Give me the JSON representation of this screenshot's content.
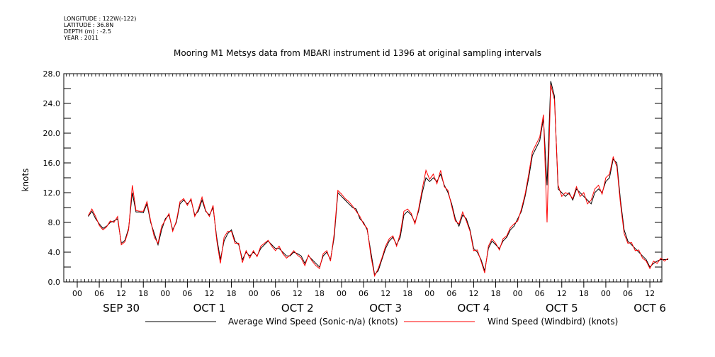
{
  "header": {
    "meta": [
      "LONGITUDE : 122W(-122)",
      "LATITUDE : 36.8N",
      "DEPTH (m) : -2.5",
      "YEAR : 2011"
    ],
    "title": "Mooring M1 Metsys data from MBARI instrument id 1396 at original sampling intervals"
  },
  "chart_data": {
    "type": "line",
    "title": "Mooring M1 Metsys data from MBARI instrument id 1396 at original sampling intervals",
    "xlabel": "",
    "ylabel": "knots",
    "x_range_hours": [
      0,
      162
    ],
    "ylim": [
      0,
      28
    ],
    "yticks": [
      "0.0",
      "4.0",
      "8.0",
      "12.0",
      "16.0",
      "20.0",
      "24.0",
      "28.0"
    ],
    "hour_ticks": [
      "00",
      "06",
      "12",
      "18",
      "00",
      "06",
      "12",
      "18",
      "00",
      "06",
      "12",
      "18",
      "00",
      "06",
      "12",
      "18",
      "00",
      "06",
      "12",
      "18",
      "00",
      "06",
      "12",
      "18",
      "00",
      "06",
      "12"
    ],
    "day_labels": [
      "SEP 30",
      "OCT  1",
      "OCT  2",
      "OCT  3",
      "OCT  4",
      "OCT  5",
      "OCT  6"
    ],
    "series": [
      {
        "name": "Average Wind Speed (Sonic-n/a) (knots)",
        "color": "#000000",
        "x_start_hour": 3,
        "x_step_hours": 1,
        "values": [
          8.8,
          9.5,
          8.5,
          7.8,
          7.2,
          7.5,
          8.0,
          8.2,
          8.5,
          5.2,
          5.6,
          7.2,
          12.0,
          9.4,
          9.4,
          9.3,
          10.5,
          8.0,
          6.5,
          5.0,
          7.0,
          8.5,
          9.0,
          7.0,
          8.0,
          10.5,
          11.0,
          10.5,
          11.0,
          9.0,
          9.5,
          11.0,
          9.5,
          9.0,
          10.0,
          6.0,
          3.0,
          5.5,
          6.5,
          7.0,
          5.5,
          5.0,
          3.0,
          4.0,
          3.5,
          4.0,
          3.5,
          4.5,
          5.0,
          5.5,
          5.0,
          4.5,
          4.5,
          4.0,
          3.5,
          3.5,
          4.0,
          3.8,
          3.5,
          2.5,
          3.5,
          3.0,
          2.5,
          2.0,
          3.5,
          4.0,
          3.0,
          6.0,
          12.0,
          11.5,
          11.0,
          10.5,
          10.0,
          9.8,
          8.5,
          8.0,
          7.0,
          4.0,
          1.0,
          1.5,
          3.0,
          4.5,
          5.5,
          6.0,
          5.0,
          6.0,
          9.0,
          9.5,
          9.0,
          8.0,
          9.5,
          12.0,
          14.0,
          13.5,
          14.0,
          13.5,
          14.5,
          13.0,
          12.0,
          10.5,
          8.5,
          7.5,
          9.0,
          8.5,
          7.0,
          4.5,
          4.0,
          3.0,
          1.5,
          4.5,
          5.5,
          5.0,
          4.5,
          5.5,
          6.0,
          7.0,
          7.5,
          8.5,
          9.5,
          11.5,
          14.0,
          17.0,
          18.0,
          19.0,
          22.0,
          13.0,
          27.0,
          25.0,
          12.5,
          12.0,
          11.5,
          12.0,
          11.0,
          12.5,
          12.0,
          11.5,
          11.0,
          10.5,
          12.0,
          12.5,
          12.0,
          13.5,
          14.0,
          16.5,
          16.0,
          11.0,
          7.0,
          5.5,
          5.0,
          4.5,
          4.0,
          3.5,
          3.0,
          2.0,
          2.5,
          2.8,
          3.0,
          3.0,
          3.0
        ]
      },
      {
        "name": "Wind Speed (Windbird) (knots)",
        "color": "#ff0000",
        "x_start_hour": 3,
        "x_step_hours": 1,
        "values": [
          8.9,
          9.8,
          8.8,
          7.6,
          7.0,
          7.4,
          8.2,
          8.0,
          8.8,
          5.0,
          5.4,
          7.0,
          13.0,
          9.6,
          9.5,
          9.5,
          10.8,
          8.2,
          6.0,
          5.2,
          7.5,
          8.3,
          9.2,
          6.8,
          8.2,
          10.8,
          11.2,
          10.3,
          11.2,
          8.8,
          9.8,
          11.4,
          9.6,
          8.8,
          10.3,
          5.6,
          2.5,
          6.0,
          6.8,
          6.8,
          5.2,
          5.2,
          2.6,
          4.2,
          3.2,
          4.2,
          3.4,
          4.8,
          5.2,
          5.6,
          4.8,
          4.2,
          4.8,
          3.8,
          3.2,
          3.6,
          4.2,
          3.6,
          3.2,
          2.2,
          3.6,
          2.8,
          2.2,
          1.8,
          3.8,
          4.2,
          2.8,
          6.5,
          12.3,
          11.8,
          11.2,
          10.8,
          10.2,
          9.5,
          8.8,
          7.8,
          7.2,
          3.5,
          0.8,
          1.8,
          3.2,
          4.8,
          5.8,
          6.2,
          4.8,
          6.5,
          9.5,
          9.8,
          9.2,
          7.8,
          9.8,
          12.5,
          15.0,
          13.8,
          14.5,
          13.2,
          15.0,
          12.8,
          12.3,
          10.2,
          8.2,
          7.8,
          9.4,
          8.2,
          6.8,
          4.2,
          4.3,
          2.8,
          1.2,
          4.8,
          5.8,
          5.2,
          4.3,
          5.8,
          6.2,
          7.3,
          7.8,
          8.2,
          9.8,
          11.8,
          14.5,
          17.5,
          18.5,
          19.5,
          22.5,
          8.0,
          26.5,
          24.5,
          13.0,
          11.5,
          12.0,
          11.8,
          11.2,
          12.8,
          11.5,
          12.0,
          10.5,
          11.0,
          12.5,
          13.0,
          11.8,
          14.0,
          14.5,
          16.8,
          15.5,
          10.5,
          6.5,
          5.2,
          5.3,
          4.2,
          4.3,
          3.2,
          2.8,
          1.8,
          2.8,
          2.5,
          3.2,
          2.8,
          3.2
        ]
      }
    ],
    "legend_position": "bottom"
  }
}
